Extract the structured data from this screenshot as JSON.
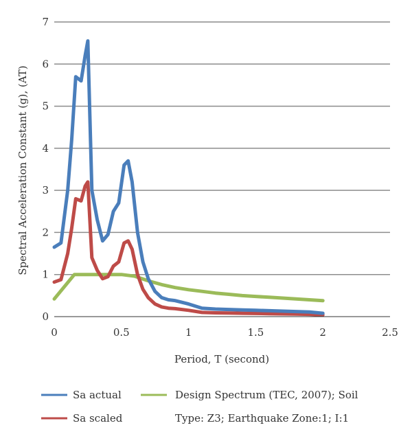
{
  "chart_data": {
    "type": "line",
    "title": "",
    "xlabel": "Period, T (second)",
    "ylabel": "Spectral Acceleration Constant (g), (AT)",
    "xlim": [
      0,
      2.5
    ],
    "ylim": [
      0,
      7
    ],
    "xticks": [
      "0",
      "0.5",
      "1",
      "1.5",
      "2",
      "2.5"
    ],
    "xtick_values": [
      0,
      0.5,
      1,
      1.5,
      2,
      2.5
    ],
    "yticks": [
      "0",
      "1",
      "2",
      "3",
      "4",
      "5",
      "6",
      "7"
    ],
    "ytick_values": [
      0,
      1,
      2,
      3,
      4,
      5,
      6,
      7
    ],
    "grid": "horizontal",
    "legend_position": "bottom",
    "series": [
      {
        "name": "Sa actual",
        "color": "#4a7ebb",
        "x": [
          0,
          0.05,
          0.1,
          0.13,
          0.16,
          0.2,
          0.23,
          0.25,
          0.28,
          0.32,
          0.36,
          0.4,
          0.44,
          0.48,
          0.52,
          0.55,
          0.58,
          0.62,
          0.66,
          0.7,
          0.75,
          0.8,
          0.85,
          0.9,
          1.0,
          1.1,
          1.2,
          1.3,
          1.4,
          1.5,
          1.6,
          1.7,
          1.8,
          1.9,
          2.0
        ],
        "values": [
          1.65,
          1.75,
          3.0,
          4.2,
          5.7,
          5.6,
          6.2,
          6.55,
          3.0,
          2.3,
          1.8,
          1.95,
          2.5,
          2.7,
          3.6,
          3.7,
          3.2,
          2.0,
          1.3,
          0.9,
          0.6,
          0.45,
          0.4,
          0.38,
          0.3,
          0.2,
          0.18,
          0.17,
          0.16,
          0.15,
          0.14,
          0.13,
          0.12,
          0.11,
          0.08
        ]
      },
      {
        "name": "Sa scaled",
        "color": "#be4b48",
        "x": [
          0,
          0.05,
          0.1,
          0.13,
          0.16,
          0.2,
          0.23,
          0.25,
          0.28,
          0.32,
          0.36,
          0.4,
          0.44,
          0.48,
          0.52,
          0.55,
          0.58,
          0.62,
          0.66,
          0.7,
          0.75,
          0.8,
          0.85,
          0.9,
          1.0,
          1.1,
          1.2,
          1.3,
          1.4,
          1.5,
          1.6,
          1.7,
          1.8,
          1.9,
          2.0
        ],
        "values": [
          0.82,
          0.88,
          1.5,
          2.1,
          2.8,
          2.75,
          3.1,
          3.2,
          1.4,
          1.1,
          0.9,
          0.95,
          1.2,
          1.3,
          1.75,
          1.8,
          1.6,
          1.0,
          0.65,
          0.45,
          0.3,
          0.23,
          0.2,
          0.19,
          0.15,
          0.1,
          0.09,
          0.085,
          0.08,
          0.075,
          0.07,
          0.065,
          0.06,
          0.055,
          0.04
        ]
      },
      {
        "name": "Design Spectrum (TEC, 2007); Soil Type: Z3; Earthquake Zone:1; I:1",
        "legend_lines": [
          "Design Spectrum (TEC, 2007); Soil",
          "Type: Z3; Earthquake Zone:1; I:1"
        ],
        "color": "#9bbb59",
        "x": [
          0,
          0.15,
          0.2,
          0.3,
          0.4,
          0.5,
          0.6,
          0.7,
          0.8,
          0.9,
          1.0,
          1.1,
          1.2,
          1.3,
          1.4,
          1.5,
          1.6,
          1.7,
          1.8,
          1.9,
          2.0
        ],
        "values": [
          0.42,
          1.0,
          1.0,
          1.0,
          1.0,
          1.0,
          0.96,
          0.85,
          0.76,
          0.69,
          0.64,
          0.6,
          0.56,
          0.53,
          0.5,
          0.48,
          0.46,
          0.44,
          0.42,
          0.4,
          0.38
        ]
      }
    ]
  }
}
